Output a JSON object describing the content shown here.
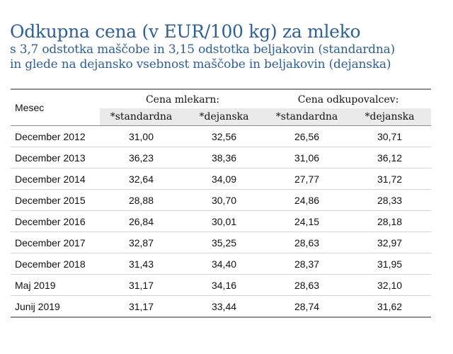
{
  "header": {
    "title": "Odkupna cena (v EUR/100 kg) za mleko",
    "subtitle_line1": "s 3,7 odstotka maščobe in 3,15 odstotka beljakovin (standardna)",
    "subtitle_line2": "in glede na dejansko vsebnost maščobe in beljakovin (dejanska)"
  },
  "chart_data": {
    "type": "table",
    "title": "Odkupna cena (v EUR/100 kg) za mleko",
    "column_groups": [
      "Cena mlekarn:",
      "Cena odkupovalcev:"
    ],
    "columns": [
      "Mesec",
      "*standardna",
      "*dejanska",
      "*standardna",
      "*dejanska"
    ],
    "rows": [
      {
        "month": "December 2012",
        "values": [
          "31,00",
          "32,56",
          "26,56",
          "30,71"
        ]
      },
      {
        "month": "December 2013",
        "values": [
          "36,23",
          "38,36",
          "31,06",
          "36,12"
        ]
      },
      {
        "month": "December 2014",
        "values": [
          "32,64",
          "34,09",
          "27,77",
          "31,72"
        ]
      },
      {
        "month": "December 2015",
        "values": [
          "28,88",
          "30,70",
          "24,86",
          "28,33"
        ]
      },
      {
        "month": "December 2016",
        "values": [
          "26,84",
          "30,01",
          "24,15",
          "28,18"
        ]
      },
      {
        "month": "December 2017",
        "values": [
          "32,87",
          "35,25",
          "28,63",
          "32,97"
        ]
      },
      {
        "month": "December 2018",
        "values": [
          "31,43",
          "34,40",
          "28,37",
          "31,95"
        ]
      },
      {
        "month": "Maj 2019",
        "values": [
          "31,17",
          "34,16",
          "28,63",
          "32,10"
        ]
      },
      {
        "month": "Junij 2019",
        "values": [
          "31,17",
          "33,44",
          "28,74",
          "31,62"
        ]
      }
    ]
  }
}
